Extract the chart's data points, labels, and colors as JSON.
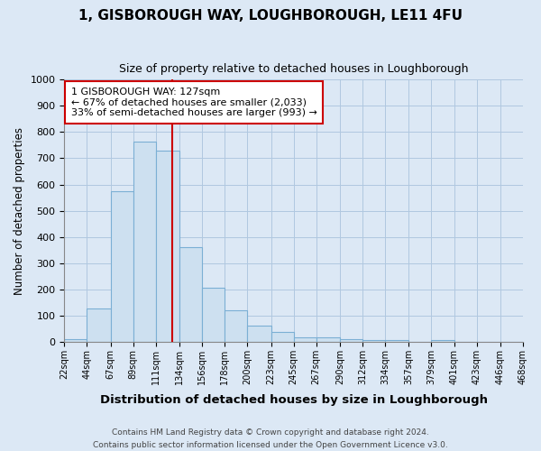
{
  "title": "1, GISBOROUGH WAY, LOUGHBOROUGH, LE11 4FU",
  "subtitle": "Size of property relative to detached houses in Loughborough",
  "xlabel": "Distribution of detached houses by size in Loughborough",
  "ylabel": "Number of detached properties",
  "bar_edges": [
    22,
    44,
    67,
    89,
    111,
    134,
    156,
    178,
    200,
    223,
    245,
    267,
    290,
    312,
    334,
    357,
    379,
    401,
    423,
    446,
    468
  ],
  "bar_heights": [
    10,
    128,
    575,
    765,
    730,
    360,
    207,
    120,
    63,
    38,
    18,
    18,
    10,
    8,
    8,
    0,
    8,
    0,
    0,
    0
  ],
  "bar_color": "#cde0f0",
  "bar_edge_color": "#7bafd4",
  "property_line_x": 127,
  "property_line_color": "#cc0000",
  "annotation_title": "1 GISBOROUGH WAY: 127sqm",
  "annotation_line1": "← 67% of detached houses are smaller (2,033)",
  "annotation_line2": "33% of semi-detached houses are larger (993) →",
  "annotation_box_color": "#cc0000",
  "ylim": [
    0,
    1000
  ],
  "yticks": [
    0,
    100,
    200,
    300,
    400,
    500,
    600,
    700,
    800,
    900,
    1000
  ],
  "footnote1": "Contains HM Land Registry data © Crown copyright and database right 2024.",
  "footnote2": "Contains public sector information licensed under the Open Government Licence v3.0.",
  "fig_bg_color": "#dce8f5",
  "plot_bg_color": "#dce8f5"
}
